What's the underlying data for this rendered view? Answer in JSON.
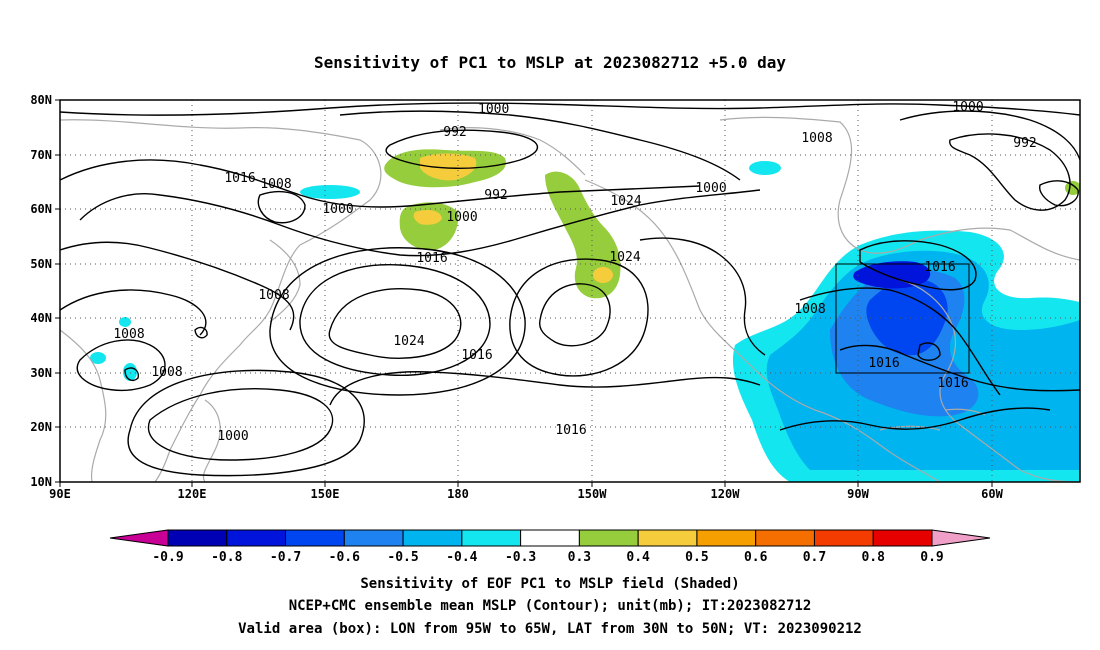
{
  "title": "Sensitivity of PC1 to MSLP at 2023082712 +5.0 day",
  "map": {
    "lon_labels": [
      "90E",
      "120E",
      "150E",
      "180",
      "150W",
      "120W",
      "90W",
      "60W"
    ],
    "lat_labels": [
      "80N",
      "70N",
      "60N",
      "50N",
      "40N",
      "30N",
      "20N",
      "10N"
    ],
    "contour_labels": [
      "1000",
      "992",
      "1016",
      "1008",
      "1000",
      "992",
      "1000",
      "1008",
      "1000",
      "1024",
      "1016",
      "1008",
      "1008",
      "1008",
      "1000",
      "1024",
      "1016",
      "1016",
      "1008",
      "1000",
      "992",
      "1016",
      "1016",
      "1016",
      "1008"
    ],
    "box": {
      "lon_from": "95W",
      "lon_to": "65W",
      "lat_from": "30N",
      "lat_to": "50N"
    }
  },
  "colorbar": {
    "labels": [
      "-0.9",
      "-0.8",
      "-0.7",
      "-0.6",
      "-0.5",
      "-0.4",
      "-0.3",
      "0.3",
      "0.4",
      "0.5",
      "0.6",
      "0.7",
      "0.8",
      "0.9"
    ],
    "colors": [
      "#0000b4",
      "#0014dc",
      "#0046f0",
      "#1e82f0",
      "#00b4f0",
      "#14e6f0",
      "#ffffff",
      "#96cd3c",
      "#f5cd3c",
      "#f5a000",
      "#f56e00",
      "#f53c00",
      "#e60000"
    ],
    "left_arrow_color": "#c80096",
    "right_arrow_color": "#f0a0c8"
  },
  "caption": {
    "line1": "Sensitivity of EOF PC1 to MSLP field (Shaded)",
    "line2": "NCEP+CMC ensemble mean MSLP (Contour); unit(mb); IT:2023082712",
    "line3": "Valid area (box): LON from 95W to 65W, LAT from 30N to 50N; VT: 2023090212"
  }
}
